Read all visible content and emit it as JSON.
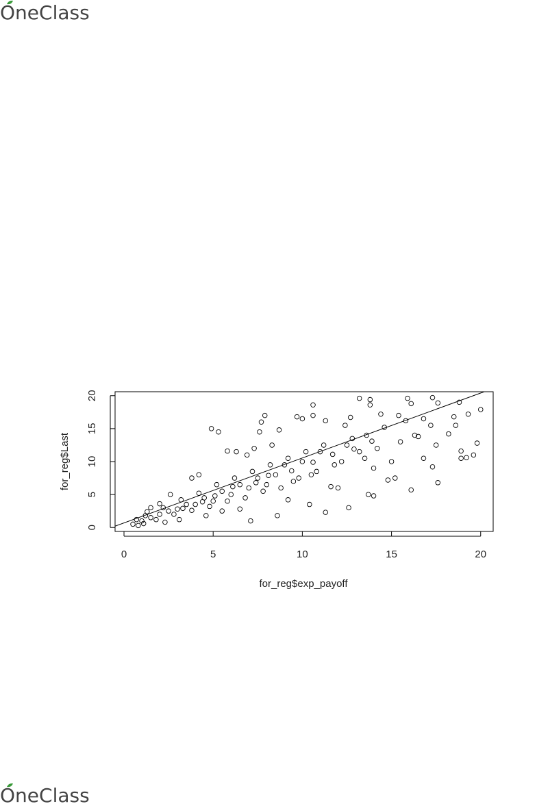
{
  "header": {
    "logo": "OneClass"
  },
  "chart_data": {
    "type": "scatter",
    "xlabel": "for_reg$exp_payoff",
    "ylabel": "for_reg$Last",
    "xlim": [
      -0.5,
      20.7
    ],
    "ylim": [
      -0.6,
      20.6
    ],
    "xticks": [
      0,
      5,
      10,
      15,
      20
    ],
    "yticks": [
      0,
      5,
      10,
      15,
      20
    ],
    "color": "#000000",
    "x": [
      4.9,
      5.3,
      7.6,
      7.7,
      7.9,
      8.7,
      9.7,
      10,
      10.6,
      10.6,
      11.3,
      12.4,
      12.7,
      13.2,
      13.8,
      13.8,
      14.4,
      15.4,
      15.9,
      16.1,
      17.3,
      17.6,
      18.8,
      19.3,
      20,
      18.5,
      17.6,
      16.1,
      13.7,
      12.6,
      11.3,
      8.6,
      7.1,
      10.4,
      19.6,
      18.9,
      19.2,
      19.8,
      18.9,
      17.3,
      15.2,
      14.8,
      14,
      12,
      16.8,
      16.5,
      15,
      14,
      13.5,
      12.5,
      11.8,
      11,
      10.5,
      10,
      9.5,
      9,
      8.5,
      8,
      7.5,
      7,
      6.5,
      6,
      5.5,
      5,
      4.5,
      4,
      3.5,
      3,
      2.5,
      2,
      1.5,
      1,
      0.5,
      0.8,
      1.2,
      1.8,
      2.2,
      2.8,
      3.2,
      3.8,
      4.2,
      4.8,
      5.2,
      5.8,
      6.2,
      6.8,
      7.2,
      7.8,
      8.2,
      8.8,
      9.2,
      9.8,
      10.2,
      10.8,
      11.2,
      11.6,
      12.2,
      12.8,
      13.2,
      13.6,
      14.2,
      14.6,
      15.5,
      15.8,
      16.3,
      16.8,
      17.2,
      17.5,
      18.2,
      18.6,
      3.8,
      4.2,
      5.8,
      6.3,
      6.9,
      7.3,
      8.3,
      2.6,
      1.5,
      5.5,
      6.5,
      4.6,
      9.2,
      2.3,
      3.1,
      0.7,
      1.1,
      1.3,
      2.0,
      3.3,
      4.4,
      5.1,
      6.1,
      7.4,
      8.1,
      9.4,
      10.6,
      11.7,
      12.9,
      13.9
    ],
    "values": [
      15,
      14.5,
      14.5,
      16,
      17,
      14.8,
      16.8,
      16.5,
      17,
      18.6,
      16.2,
      15.5,
      16.7,
      19.6,
      19.4,
      18.6,
      17.2,
      17,
      19.6,
      18.8,
      19.7,
      18.9,
      19,
      17.2,
      17.9,
      16.8,
      6.8,
      5.7,
      5,
      3,
      2.3,
      1.8,
      1,
      3.5,
      11,
      10.5,
      10.6,
      12.8,
      11.6,
      9.2,
      7.5,
      7.2,
      4.8,
      6,
      10.5,
      13.8,
      10,
      9,
      10.5,
      12.5,
      9.5,
      11.5,
      8,
      10,
      7,
      9.5,
      8,
      6.5,
      7.5,
      6,
      6.5,
      5,
      5.5,
      4,
      4.5,
      3.5,
      3.5,
      2.8,
      2.5,
      2,
      1.5,
      1,
      0.5,
      0.3,
      1.8,
      1.2,
      3,
      2,
      4.2,
      2.6,
      5.2,
      3.2,
      6.5,
      4,
      7.5,
      4.5,
      8.5,
      5.5,
      9.5,
      6,
      10.5,
      7.5,
      11.5,
      8.5,
      12.5,
      6.2,
      10,
      13.5,
      11.5,
      14,
      12,
      15.2,
      13,
      16.2,
      14,
      16.5,
      15.5,
      12.5,
      14.2,
      15.5,
      7.5,
      8,
      11.6,
      11.5,
      11,
      12,
      12.5,
      5,
      3,
      2.5,
      2.8,
      1.8,
      4.2,
      0.8,
      1.2,
      1.2,
      0.6,
      2.4,
      3.6,
      2.9,
      3.9,
      4.8,
      6.2,
      6.8,
      7.9,
      8.6,
      9.9,
      11.1,
      11.9,
      13.1
    ],
    "fit_line": {
      "x": [
        -0.5,
        20.2
      ],
      "values": [
        0.2,
        20.6
      ]
    }
  },
  "footer": {
    "logo": "OneClass"
  }
}
